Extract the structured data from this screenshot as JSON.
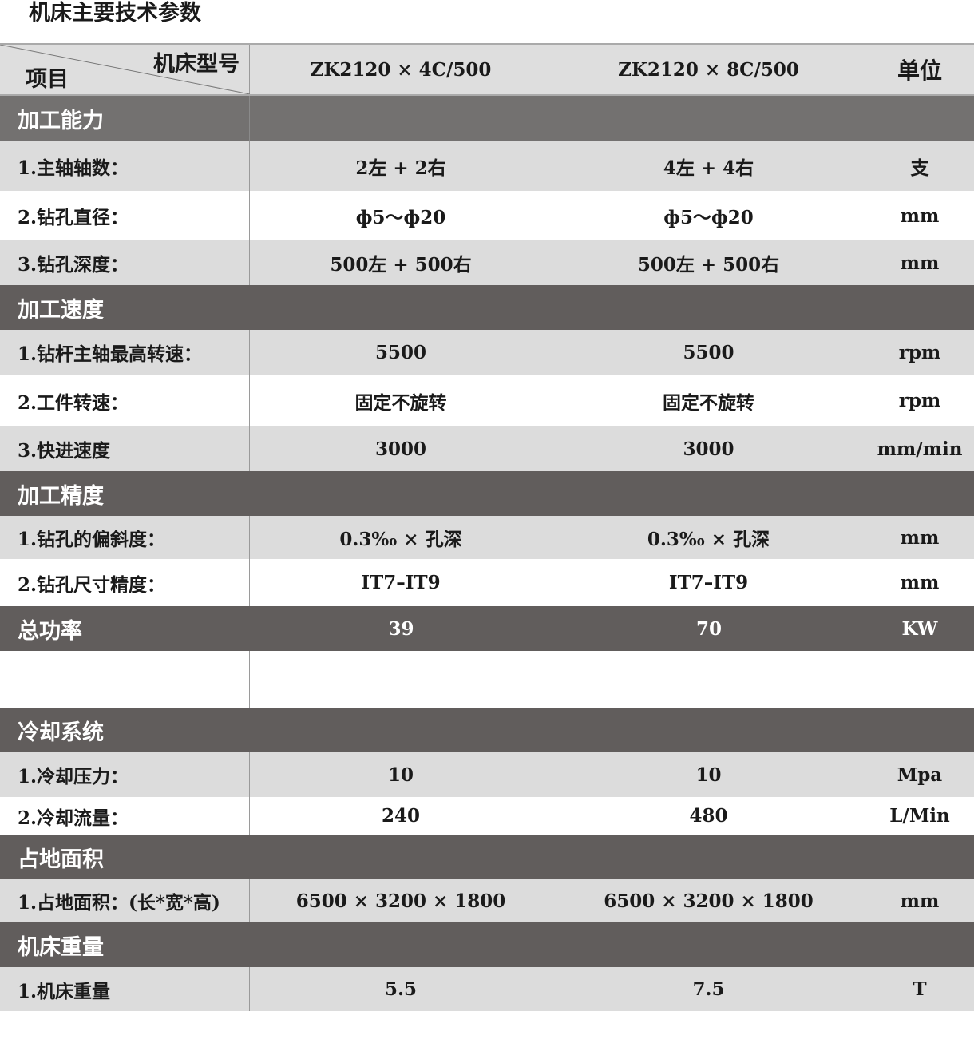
{
  "title": "机床主要技术参数",
  "header": {
    "model_label": "机床型号",
    "item_label": "项目",
    "model_1": "ZK2120 × 4C/500",
    "model_2": "ZK2120 × 8C/500",
    "unit_label": "单位"
  },
  "rows": [
    {
      "type": "section",
      "label": "加工能力"
    },
    {
      "type": "data",
      "label": "1.主轴轴数：",
      "v1": "2左 + 2右",
      "v2": "4左 + 4右",
      "unit": "支"
    },
    {
      "type": "data",
      "label": "2.钻孔直径：",
      "v1": "ф5～ф20",
      "v2": "ф5～ф20",
      "unit": "mm"
    },
    {
      "type": "data",
      "label": "3.钻孔深度：",
      "v1": "500左 + 500右",
      "v2": "500左 + 500右",
      "unit": "mm"
    },
    {
      "type": "section",
      "label": "加工速度"
    },
    {
      "type": "data",
      "label": "1.钻杆主轴最高转速：",
      "v1": "5500",
      "v2": "5500",
      "unit": "rpm"
    },
    {
      "type": "data",
      "label": "2.工件转速：",
      "v1": "固定不旋转",
      "v2": "固定不旋转",
      "unit": "rpm"
    },
    {
      "type": "data",
      "label": "3.快进速度",
      "v1": "3000",
      "v2": "3000",
      "unit": "mm/min"
    },
    {
      "type": "section",
      "label": "加工精度"
    },
    {
      "type": "data",
      "label": "1.钻孔的偏斜度：",
      "v1": "0.3‰ × 孔深",
      "v2": "0.3‰ × 孔深",
      "unit": "mm"
    },
    {
      "type": "data",
      "label": "2.钻孔尺寸精度：",
      "v1": "IT7–IT9",
      "v2": "IT7–IT9",
      "unit": "mm"
    },
    {
      "type": "power",
      "label": "总功率",
      "v1": "39",
      "v2": "70",
      "unit": "KW"
    },
    {
      "type": "blank"
    },
    {
      "type": "section",
      "label": "冷却系统"
    },
    {
      "type": "data",
      "label": "1.冷却压力：",
      "v1": "10",
      "v2": "10",
      "unit": "Mpa"
    },
    {
      "type": "data",
      "label": "2.冷却流量：",
      "v1": "240",
      "v2": "480",
      "unit": "L/Min"
    },
    {
      "type": "section",
      "label": "占地面积"
    },
    {
      "type": "data",
      "label": "1.占地面积：(长*宽*高)",
      "v1": "6500 × 3200 × 1800",
      "v2": "6500 × 3200 × 1800",
      "unit": "mm"
    },
    {
      "type": "section",
      "label": "机床重量"
    },
    {
      "type": "data",
      "label": "1.机床重量",
      "v1": "5.5",
      "v2": "7.5",
      "unit": "T"
    }
  ]
}
